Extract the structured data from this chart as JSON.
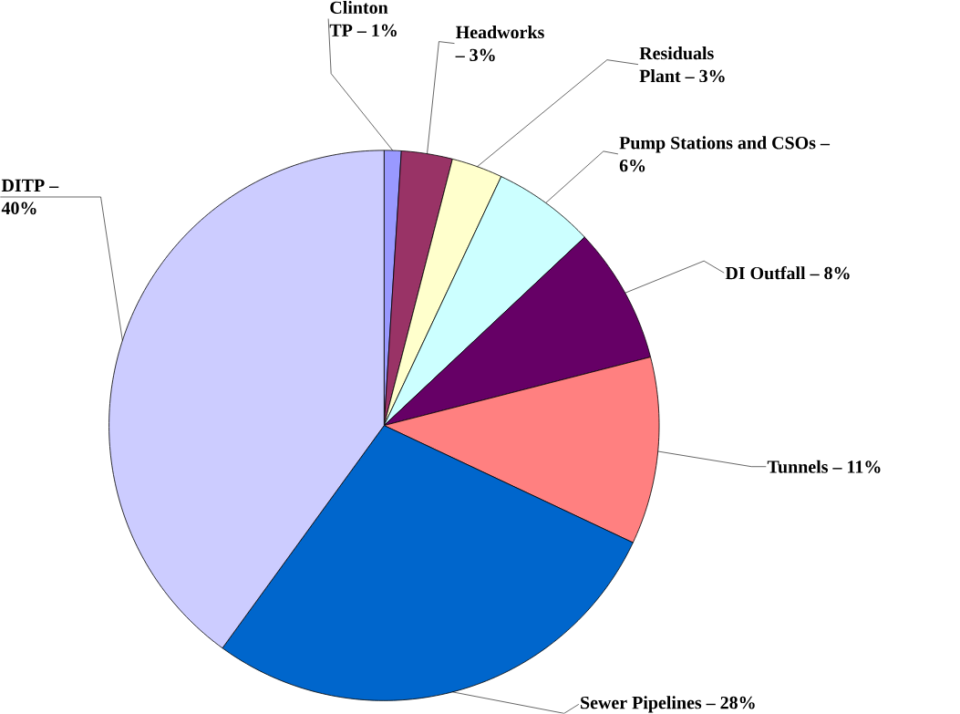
{
  "chart_data": {
    "type": "pie",
    "categories": [
      "Clinton TP – 1%",
      "Headworks – 3%",
      "Residuals Plant – 3%",
      "Pump Stations and CSOs – 6%",
      "DI Outfall – 8%",
      "Tunnels – 11%",
      "Sewer Pipelines – 28%",
      "DITP – 40%"
    ],
    "values": [
      1,
      3,
      3,
      6,
      8,
      11,
      28,
      40
    ],
    "colors": [
      "#9999ff",
      "#993366",
      "#ffffcc",
      "#ccffff",
      "#660066",
      "#ff8080",
      "#0066cc",
      "#ccccff"
    ]
  }
}
